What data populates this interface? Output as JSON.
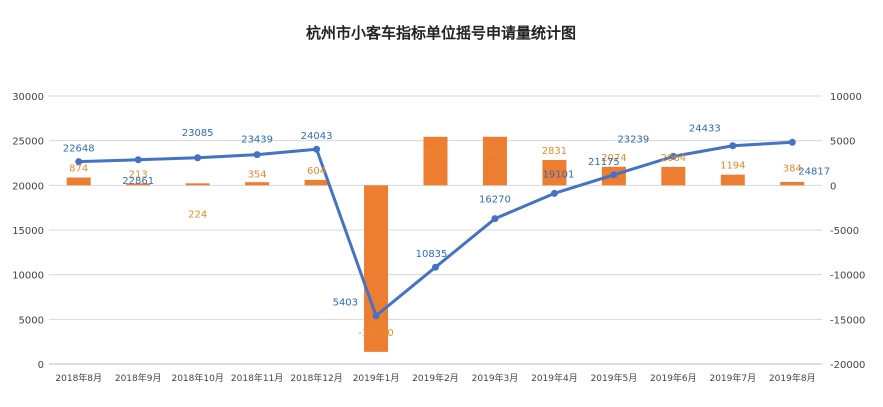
{
  "chart_data": {
    "type": "bar",
    "title": "杭州市小客车指标单位摇号申请量统计图",
    "categories": [
      "2018年8月",
      "2018年9月",
      "2018年10月",
      "2018年11月",
      "2018年12月",
      "2019年1月",
      "2019年2月",
      "2019年3月",
      "2019年4月",
      "2019年5月",
      "2019年6月",
      "2019年7月",
      "2019年8月"
    ],
    "left_axis": {
      "min": 0,
      "max": 30000,
      "step": 5000,
      "ticks": [
        "0",
        "5000",
        "10000",
        "15000",
        "20000",
        "25000",
        "30000"
      ]
    },
    "right_axis": {
      "min": -20000,
      "max": 10000,
      "step": 5000,
      "ticks": [
        "-20000",
        "-15000",
        "-10000",
        "-5000",
        "0",
        "5000",
        "10000"
      ]
    },
    "grid": true,
    "legend": "none",
    "series": [
      {
        "type": "line",
        "axis": "left",
        "color": "#4472c4",
        "label_color": "#2e6db4",
        "values": [
          22648,
          22861,
          23085,
          23439,
          24043,
          5403,
          10835,
          16270,
          19101,
          21175,
          23239,
          24433,
          24817
        ],
        "labels": [
          "22648",
          "22861",
          "23085",
          "23439",
          "24043",
          "5403",
          "10835",
          "16270",
          "19101",
          "21175",
          "23239",
          "24433",
          "24817"
        ]
      },
      {
        "type": "bar",
        "axis": "right",
        "color": "#ed7d31",
        "label_color": "#e88a2e",
        "values": [
          874,
          213,
          224,
          354,
          604,
          -18640,
          5432,
          5435,
          2831,
          2074,
          2064,
          1194,
          384
        ],
        "labels": [
          "874",
          "213",
          "224",
          "354",
          "604",
          "-18640",
          "5432",
          "5435",
          "2831",
          "2074",
          "2064",
          "1194",
          "384"
        ]
      }
    ]
  }
}
